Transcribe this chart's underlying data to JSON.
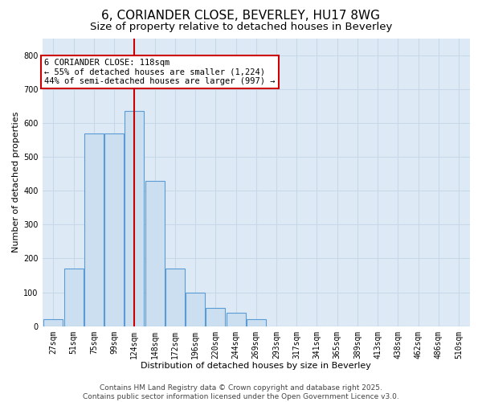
{
  "title": "6, CORIANDER CLOSE, BEVERLEY, HU17 8WG",
  "subtitle": "Size of property relative to detached houses in Beverley",
  "xlabel": "Distribution of detached houses by size in Beverley",
  "ylabel": "Number of detached properties",
  "categories": [
    "27sqm",
    "51sqm",
    "75sqm",
    "99sqm",
    "124sqm",
    "148sqm",
    "172sqm",
    "196sqm",
    "220sqm",
    "244sqm",
    "269sqm",
    "293sqm",
    "317sqm",
    "341sqm",
    "365sqm",
    "389sqm",
    "413sqm",
    "438sqm",
    "462sqm",
    "486sqm",
    "510sqm"
  ],
  "values": [
    20,
    170,
    570,
    570,
    635,
    430,
    170,
    100,
    55,
    40,
    20,
    0,
    0,
    0,
    0,
    0,
    0,
    0,
    0,
    0,
    0
  ],
  "bar_color": "#ccdff0",
  "bar_edge_color": "#5b9bd5",
  "grid_color": "#c8d8e8",
  "bg_color": "#ddeaf5",
  "vline_x": 4,
  "vline_color": "#cc0000",
  "annotation_text": "6 CORIANDER CLOSE: 118sqm\n← 55% of detached houses are smaller (1,224)\n44% of semi-detached houses are larger (997) →",
  "annotation_box_color": "#cc0000",
  "footer_line1": "Contains HM Land Registry data © Crown copyright and database right 2025.",
  "footer_line2": "Contains public sector information licensed under the Open Government Licence v3.0.",
  "ylim": [
    0,
    850
  ],
  "yticks": [
    0,
    100,
    200,
    300,
    400,
    500,
    600,
    700,
    800
  ],
  "title_fontsize": 11,
  "subtitle_fontsize": 9.5,
  "axis_label_fontsize": 8,
  "tick_fontsize": 7,
  "annotation_fontsize": 7.5,
  "footer_fontsize": 6.5
}
